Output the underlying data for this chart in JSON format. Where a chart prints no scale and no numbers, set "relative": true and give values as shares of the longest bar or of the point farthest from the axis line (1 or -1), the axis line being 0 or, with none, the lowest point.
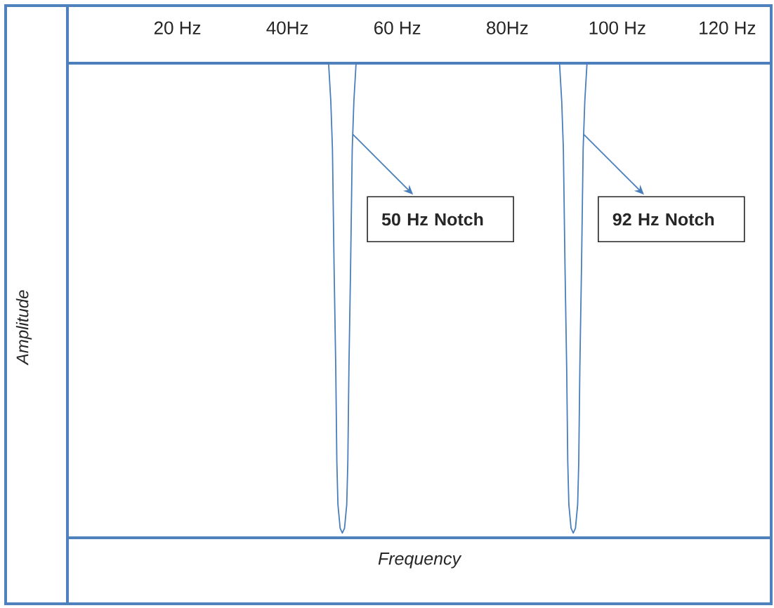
{
  "chart_data": {
    "type": "line",
    "xlabel": "Frequency",
    "ylabel": "Amplitude",
    "xlim": [
      0,
      128
    ],
    "xticks": [
      {
        "value": 20,
        "label": "20 Hz"
      },
      {
        "value": 40,
        "label": "40Hz"
      },
      {
        "value": 60,
        "label": "60 Hz"
      },
      {
        "value": 80,
        "label": "80Hz"
      },
      {
        "value": 100,
        "label": "100 Hz"
      },
      {
        "value": 120,
        "label": "120 Hz"
      }
    ],
    "relative": true,
    "x": [
      0,
      47.5,
      47.9,
      48.2,
      48.5,
      48.8,
      49.0,
      49.2,
      49.6,
      50,
      50.4,
      50.8,
      51.0,
      51.2,
      51.5,
      51.8,
      52.1,
      52.5,
      89.5,
      89.9,
      90.2,
      90.5,
      90.8,
      91.0,
      91.2,
      91.6,
      92,
      92.4,
      92.8,
      93.0,
      93.2,
      93.5,
      93.8,
      94.1,
      94.5,
      128
    ],
    "series": [
      {
        "color": "#4a7ebb",
        "values": [
          1,
          1,
          0.92,
          0.82,
          0.57,
          0.36,
          0.16,
          0.07,
          0.02,
          0.01,
          0.02,
          0.07,
          0.16,
          0.36,
          0.57,
          0.82,
          0.92,
          1,
          1,
          0.92,
          0.82,
          0.57,
          0.36,
          0.16,
          0.07,
          0.02,
          0.01,
          0.02,
          0.07,
          0.16,
          0.36,
          0.57,
          0.82,
          0.92,
          1,
          1
        ]
      }
    ],
    "annotations": [
      {
        "text": "50 Hz Notch",
        "x": 51.9,
        "y": 0.85
      },
      {
        "text": "92 Hz Notch",
        "x": 93.9,
        "y": 0.85
      }
    ],
    "marker": "none",
    "line_style": "solid"
  }
}
